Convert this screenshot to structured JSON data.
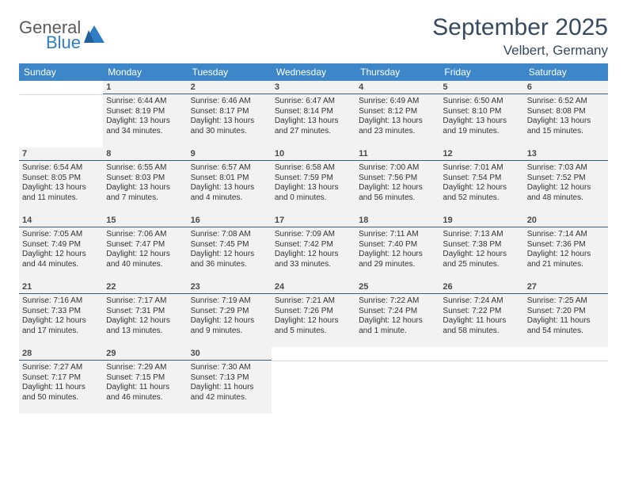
{
  "logo": {
    "general": "General",
    "blue": "Blue"
  },
  "title": "September 2025",
  "location": "Velbert, Germany",
  "colors": {
    "header_bg": "#3d87c9",
    "header_fg": "#ffffff",
    "rule": "#3a5d7a",
    "cell_bg": "#f2f2f2",
    "title_fg": "#374a5e",
    "logo_gray": "#5a5a5a",
    "logo_blue": "#2f7dc4"
  },
  "weekdays": [
    "Sunday",
    "Monday",
    "Tuesday",
    "Wednesday",
    "Thursday",
    "Friday",
    "Saturday"
  ],
  "weeks": [
    [
      {
        "n": "",
        "active": false
      },
      {
        "n": "1",
        "active": true,
        "sunrise": "Sunrise: 6:44 AM",
        "sunset": "Sunset: 8:19 PM",
        "day1": "Daylight: 13 hours",
        "day2": "and 34 minutes."
      },
      {
        "n": "2",
        "active": true,
        "sunrise": "Sunrise: 6:46 AM",
        "sunset": "Sunset: 8:17 PM",
        "day1": "Daylight: 13 hours",
        "day2": "and 30 minutes."
      },
      {
        "n": "3",
        "active": true,
        "sunrise": "Sunrise: 6:47 AM",
        "sunset": "Sunset: 8:14 PM",
        "day1": "Daylight: 13 hours",
        "day2": "and 27 minutes."
      },
      {
        "n": "4",
        "active": true,
        "sunrise": "Sunrise: 6:49 AM",
        "sunset": "Sunset: 8:12 PM",
        "day1": "Daylight: 13 hours",
        "day2": "and 23 minutes."
      },
      {
        "n": "5",
        "active": true,
        "sunrise": "Sunrise: 6:50 AM",
        "sunset": "Sunset: 8:10 PM",
        "day1": "Daylight: 13 hours",
        "day2": "and 19 minutes."
      },
      {
        "n": "6",
        "active": true,
        "sunrise": "Sunrise: 6:52 AM",
        "sunset": "Sunset: 8:08 PM",
        "day1": "Daylight: 13 hours",
        "day2": "and 15 minutes."
      }
    ],
    [
      {
        "n": "7",
        "active": true,
        "sunrise": "Sunrise: 6:54 AM",
        "sunset": "Sunset: 8:05 PM",
        "day1": "Daylight: 13 hours",
        "day2": "and 11 minutes."
      },
      {
        "n": "8",
        "active": true,
        "sunrise": "Sunrise: 6:55 AM",
        "sunset": "Sunset: 8:03 PM",
        "day1": "Daylight: 13 hours",
        "day2": "and 7 minutes."
      },
      {
        "n": "9",
        "active": true,
        "sunrise": "Sunrise: 6:57 AM",
        "sunset": "Sunset: 8:01 PM",
        "day1": "Daylight: 13 hours",
        "day2": "and 4 minutes."
      },
      {
        "n": "10",
        "active": true,
        "sunrise": "Sunrise: 6:58 AM",
        "sunset": "Sunset: 7:59 PM",
        "day1": "Daylight: 13 hours",
        "day2": "and 0 minutes."
      },
      {
        "n": "11",
        "active": true,
        "sunrise": "Sunrise: 7:00 AM",
        "sunset": "Sunset: 7:56 PM",
        "day1": "Daylight: 12 hours",
        "day2": "and 56 minutes."
      },
      {
        "n": "12",
        "active": true,
        "sunrise": "Sunrise: 7:01 AM",
        "sunset": "Sunset: 7:54 PM",
        "day1": "Daylight: 12 hours",
        "day2": "and 52 minutes."
      },
      {
        "n": "13",
        "active": true,
        "sunrise": "Sunrise: 7:03 AM",
        "sunset": "Sunset: 7:52 PM",
        "day1": "Daylight: 12 hours",
        "day2": "and 48 minutes."
      }
    ],
    [
      {
        "n": "14",
        "active": true,
        "sunrise": "Sunrise: 7:05 AM",
        "sunset": "Sunset: 7:49 PM",
        "day1": "Daylight: 12 hours",
        "day2": "and 44 minutes."
      },
      {
        "n": "15",
        "active": true,
        "sunrise": "Sunrise: 7:06 AM",
        "sunset": "Sunset: 7:47 PM",
        "day1": "Daylight: 12 hours",
        "day2": "and 40 minutes."
      },
      {
        "n": "16",
        "active": true,
        "sunrise": "Sunrise: 7:08 AM",
        "sunset": "Sunset: 7:45 PM",
        "day1": "Daylight: 12 hours",
        "day2": "and 36 minutes."
      },
      {
        "n": "17",
        "active": true,
        "sunrise": "Sunrise: 7:09 AM",
        "sunset": "Sunset: 7:42 PM",
        "day1": "Daylight: 12 hours",
        "day2": "and 33 minutes."
      },
      {
        "n": "18",
        "active": true,
        "sunrise": "Sunrise: 7:11 AM",
        "sunset": "Sunset: 7:40 PM",
        "day1": "Daylight: 12 hours",
        "day2": "and 29 minutes."
      },
      {
        "n": "19",
        "active": true,
        "sunrise": "Sunrise: 7:13 AM",
        "sunset": "Sunset: 7:38 PM",
        "day1": "Daylight: 12 hours",
        "day2": "and 25 minutes."
      },
      {
        "n": "20",
        "active": true,
        "sunrise": "Sunrise: 7:14 AM",
        "sunset": "Sunset: 7:36 PM",
        "day1": "Daylight: 12 hours",
        "day2": "and 21 minutes."
      }
    ],
    [
      {
        "n": "21",
        "active": true,
        "sunrise": "Sunrise: 7:16 AM",
        "sunset": "Sunset: 7:33 PM",
        "day1": "Daylight: 12 hours",
        "day2": "and 17 minutes."
      },
      {
        "n": "22",
        "active": true,
        "sunrise": "Sunrise: 7:17 AM",
        "sunset": "Sunset: 7:31 PM",
        "day1": "Daylight: 12 hours",
        "day2": "and 13 minutes."
      },
      {
        "n": "23",
        "active": true,
        "sunrise": "Sunrise: 7:19 AM",
        "sunset": "Sunset: 7:29 PM",
        "day1": "Daylight: 12 hours",
        "day2": "and 9 minutes."
      },
      {
        "n": "24",
        "active": true,
        "sunrise": "Sunrise: 7:21 AM",
        "sunset": "Sunset: 7:26 PM",
        "day1": "Daylight: 12 hours",
        "day2": "and 5 minutes."
      },
      {
        "n": "25",
        "active": true,
        "sunrise": "Sunrise: 7:22 AM",
        "sunset": "Sunset: 7:24 PM",
        "day1": "Daylight: 12 hours",
        "day2": "and 1 minute."
      },
      {
        "n": "26",
        "active": true,
        "sunrise": "Sunrise: 7:24 AM",
        "sunset": "Sunset: 7:22 PM",
        "day1": "Daylight: 11 hours",
        "day2": "and 58 minutes."
      },
      {
        "n": "27",
        "active": true,
        "sunrise": "Sunrise: 7:25 AM",
        "sunset": "Sunset: 7:20 PM",
        "day1": "Daylight: 11 hours",
        "day2": "and 54 minutes."
      }
    ],
    [
      {
        "n": "28",
        "active": true,
        "sunrise": "Sunrise: 7:27 AM",
        "sunset": "Sunset: 7:17 PM",
        "day1": "Daylight: 11 hours",
        "day2": "and 50 minutes."
      },
      {
        "n": "29",
        "active": true,
        "sunrise": "Sunrise: 7:29 AM",
        "sunset": "Sunset: 7:15 PM",
        "day1": "Daylight: 11 hours",
        "day2": "and 46 minutes."
      },
      {
        "n": "30",
        "active": true,
        "sunrise": "Sunrise: 7:30 AM",
        "sunset": "Sunset: 7:13 PM",
        "day1": "Daylight: 11 hours",
        "day2": "and 42 minutes."
      },
      {
        "n": "",
        "active": false
      },
      {
        "n": "",
        "active": false
      },
      {
        "n": "",
        "active": false
      },
      {
        "n": "",
        "active": false
      }
    ]
  ]
}
